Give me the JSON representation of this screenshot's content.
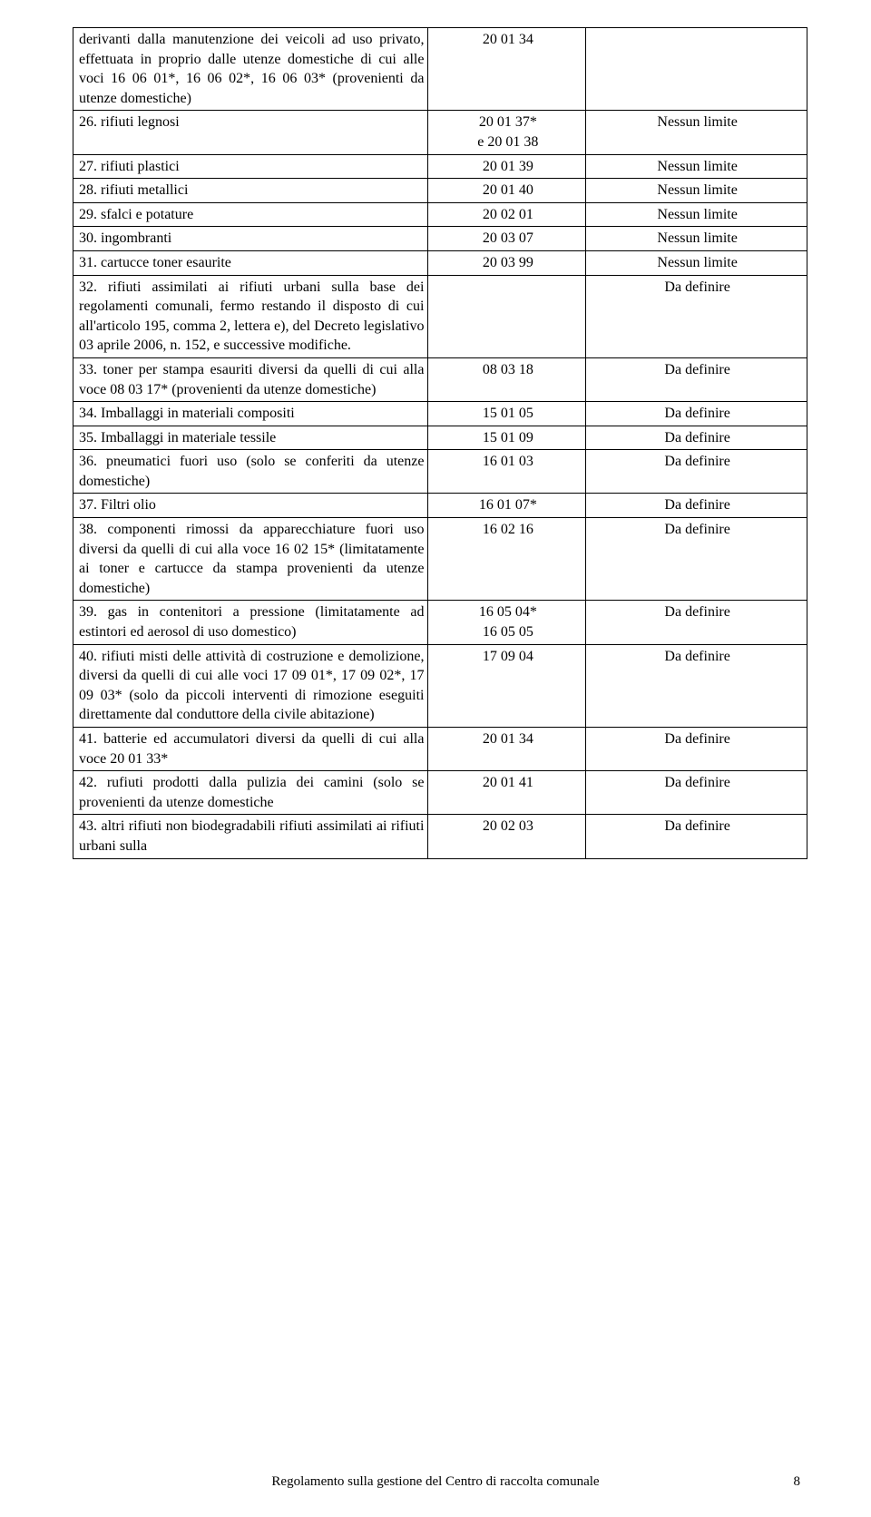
{
  "page": {
    "background": "#ffffff",
    "text_color": "#000000",
    "font_family": "Times New Roman",
    "base_fontsize": 16
  },
  "table": {
    "type": "table",
    "border_color": "#000000",
    "col_widths_pct": [
      49,
      21,
      30
    ],
    "col_align": [
      "justify",
      "center",
      "center"
    ],
    "rows": [
      {
        "c0": "derivanti dalla manutenzione dei veicoli ad uso privato, effettuata in proprio dalle utenze domestiche di cui alle voci 16 06 01*, 16 06 02*, 16 06 03* (provenienti da utenze domestiche)",
        "c1": "20 01 34",
        "c2": ""
      },
      {
        "c0": "26. rifiuti legnosi",
        "c1": "20 01 37*\ne 20 01 38",
        "c2": "Nessun limite"
      },
      {
        "c0": "27. rifiuti plastici",
        "c1": "20 01 39",
        "c2": "Nessun limite"
      },
      {
        "c0": "28. rifiuti metallici",
        "c1": "20 01 40",
        "c2": "Nessun limite"
      },
      {
        "c0": "29. sfalci e potature",
        "c1": "20 02 01",
        "c2": "Nessun limite"
      },
      {
        "c0": "30. ingombranti",
        "c1": "20 03 07",
        "c2": "Nessun limite"
      },
      {
        "c0": "31. cartucce toner esaurite",
        "c1": "20 03 99",
        "c2": "Nessun limite"
      },
      {
        "c0": "32. rifiuti assimilati ai rifiuti urbani sulla base dei regolamenti comunali, fermo restando il disposto di cui all'articolo 195, comma 2, lettera e), del Decreto legislativo 03 aprile 2006, n. 152, e successive modifiche.",
        "c1": "",
        "c2": "Da definire"
      },
      {
        "c0": "33. toner per stampa esauriti diversi da quelli di cui alla voce 08 03 17* (provenienti da utenze domestiche)",
        "c1": "08 03 18",
        "c2": "Da definire"
      },
      {
        "c0": "34. Imballaggi in materiali compositi",
        "c1": "15 01 05",
        "c2": "Da definire"
      },
      {
        "c0": "35. Imballaggi in materiale tessile",
        "c1": "15 01 09",
        "c2": "Da definire"
      },
      {
        "c0": "36. pneumatici fuori uso (solo se conferiti da utenze domestiche)",
        "c1": "16 01 03",
        "c2": "Da definire"
      },
      {
        "c0": "37. Filtri olio",
        "c1": "16 01 07*",
        "c2": "Da definire"
      },
      {
        "c0": "38. componenti rimossi da apparecchiature fuori uso diversi da quelli di cui alla voce 16 02 15* (limitatamente ai toner e cartucce da stampa provenienti da utenze domestiche)",
        "c1": "16 02 16",
        "c2": "Da definire"
      },
      {
        "c0": "39. gas in contenitori a pressione (limitatamente ad estintori ed aerosol di uso domestico)",
        "c1": "16 05 04*\n16 05 05",
        "c2": "Da definire"
      },
      {
        "c0": "40. rifiuti misti delle attività di costruzione e demolizione, diversi da quelli di cui alle voci 17 09 01*, 17 09 02*, 17 09 03* (solo da piccoli interventi di rimozione eseguiti direttamente dal conduttore della civile abitazione)",
        "c1": "17 09 04",
        "c2": "Da definire"
      },
      {
        "c0": "41. batterie ed accumulatori diversi da quelli di cui alla voce 20 01 33*",
        "c1": "20 01 34",
        "c2": "Da definire"
      },
      {
        "c0": "42. rufiuti prodotti dalla pulizia dei camini (solo se provenienti da utenze domestiche",
        "c1": "20 01 41",
        "c2": "Da definire"
      },
      {
        "c0": "43. altri rifiuti non biodegradabili rifiuti assimilati ai rifiuti urbani sulla",
        "c1": "20 02 03",
        "c2": "Da definire"
      }
    ]
  },
  "footer": {
    "text": "Regolamento sulla gestione del Centro di raccolta comunale",
    "page_number": "8"
  }
}
